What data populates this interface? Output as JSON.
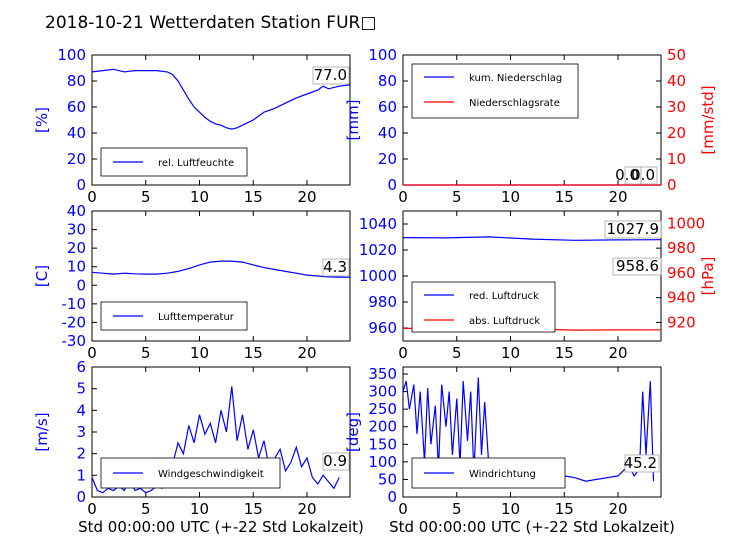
{
  "figure": {
    "title": "2018-10-21 Wetterdaten Station FUR□"
  },
  "chart_data": [
    {
      "id": "humidity",
      "type": "line",
      "xlim": [
        0,
        24
      ],
      "xticks": [
        0,
        5,
        10,
        15,
        20
      ],
      "ylim": [
        0,
        100
      ],
      "yticks": [
        0,
        20,
        40,
        60,
        80,
        100
      ],
      "ylabel": "[%]",
      "series": [
        {
          "name": "rel. Luftfeuchte",
          "color": "#0000ff",
          "x": [
            0,
            1,
            2,
            3,
            4,
            5,
            6,
            7,
            7.5,
            8,
            8.5,
            9,
            9.5,
            10,
            10.5,
            11,
            11.5,
            12,
            12.5,
            13,
            13.5,
            14,
            14.5,
            15,
            15.5,
            16,
            17,
            18,
            19,
            20,
            21,
            21.5,
            22,
            23,
            24
          ],
          "y": [
            87,
            88,
            89,
            87,
            88,
            88,
            88,
            87,
            85,
            80,
            73,
            66,
            60,
            56,
            52,
            49,
            47,
            46,
            44,
            43,
            44,
            46,
            48,
            50,
            53,
            56,
            59,
            63,
            67,
            70,
            73,
            76,
            74,
            76,
            77
          ]
        }
      ],
      "value_label": "77.0"
    },
    {
      "id": "precipitation",
      "type": "line",
      "xlim": [
        0,
        24
      ],
      "xticks": [
        0,
        5,
        10,
        15,
        20
      ],
      "ylim": [
        0,
        100
      ],
      "yticks": [
        0,
        20,
        40,
        60,
        80,
        100
      ],
      "ylabel": "[mm]",
      "y2lim": [
        0,
        50
      ],
      "y2ticks": [
        0,
        10,
        20,
        30,
        40,
        50
      ],
      "y2label": "[mm/std]",
      "series": [
        {
          "name": "kum. Niederschlag",
          "color": "#0000ff",
          "x": [
            0,
            24
          ],
          "y": [
            0,
            0
          ]
        },
        {
          "name": "Niederschlagsrate",
          "color": "#ff0000",
          "x": [
            0,
            24
          ],
          "y": [
            0,
            0
          ]
        }
      ],
      "value_labels": [
        "0.0",
        "0.0"
      ]
    },
    {
      "id": "temperature",
      "type": "line",
      "xlim": [
        0,
        24
      ],
      "xticks": [
        0,
        5,
        10,
        15,
        20
      ],
      "ylim": [
        -30,
        40
      ],
      "yticks": [
        -30,
        -20,
        -10,
        0,
        10,
        20,
        30,
        40
      ],
      "ylabel": "[C]",
      "series": [
        {
          "name": "Lufttemperatur",
          "color": "#0000ff",
          "x": [
            0,
            1,
            2,
            3,
            4,
            5,
            6,
            7,
            8,
            9,
            10,
            11,
            12,
            13,
            14,
            15,
            16,
            17,
            18,
            19,
            20,
            21,
            22,
            23,
            24
          ],
          "y": [
            7,
            6.5,
            6,
            6.5,
            6.2,
            6,
            6,
            6.5,
            7.5,
            9,
            11,
            12.5,
            13,
            13,
            12.5,
            11,
            9.5,
            8.5,
            7.5,
            6.5,
            5.5,
            5,
            4.5,
            4.4,
            4.3
          ]
        }
      ],
      "value_label": "4.3"
    },
    {
      "id": "pressure",
      "type": "line",
      "xlim": [
        0,
        24
      ],
      "xticks": [
        0,
        5,
        10,
        15,
        20
      ],
      "ylim": [
        950,
        1050
      ],
      "yticks": [
        960,
        980,
        1000,
        1020,
        1040
      ],
      "y2lim": [
        905,
        1010
      ],
      "y2ticks": [
        920,
        940,
        960,
        980,
        1000
      ],
      "y2label": "[hPa]",
      "series": [
        {
          "name": "red. Luftdruck",
          "color": "#0000ff",
          "x": [
            0,
            4,
            8,
            10,
            12,
            16,
            20,
            24
          ],
          "y": [
            1029.5,
            1029.3,
            1030.1,
            1029.2,
            1028.4,
            1027.5,
            1027.8,
            1027.9
          ]
        },
        {
          "name": "abs. Luftdruck",
          "color": "#ff0000",
          "x": [
            0,
            4,
            8,
            10,
            12,
            16,
            20,
            24
          ],
          "y": [
            959.7,
            959.8,
            960.6,
            959.9,
            959.3,
            958.4,
            958.5,
            958.6
          ]
        }
      ],
      "value_labels": [
        "1027.9",
        "958.6"
      ]
    },
    {
      "id": "windspeed",
      "type": "line",
      "xlim": [
        0,
        24
      ],
      "xticks": [
        0,
        5,
        10,
        15,
        20
      ],
      "ylim": [
        0,
        6
      ],
      "yticks": [
        0,
        1,
        2,
        3,
        4,
        5,
        6
      ],
      "ylabel": "[m/s]",
      "series": [
        {
          "name": "Windgeschwindigkeit",
          "color": "#0000ff",
          "x": [
            0,
            0.5,
            1,
            1.5,
            2,
            2.5,
            3,
            3.5,
            4,
            4.5,
            5,
            5.5,
            6,
            6.5,
            7,
            7.5,
            8,
            8.5,
            9,
            9.5,
            10,
            10.5,
            11,
            11.5,
            12,
            12.5,
            13,
            13.5,
            14,
            14.5,
            15,
            15.5,
            16,
            16.5,
            17,
            17.5,
            18,
            18.5,
            19,
            19.5,
            20,
            20.5,
            21,
            21.5,
            22,
            22.5,
            23
          ],
          "y": [
            0.9,
            0.3,
            0.2,
            0.4,
            0.3,
            0.5,
            0.3,
            0.8,
            0.3,
            0.4,
            0.2,
            0.3,
            0.5,
            0.4,
            0.8,
            1.5,
            2.5,
            2.0,
            3.3,
            2.5,
            3.8,
            2.9,
            3.4,
            2.5,
            4.0,
            3.0,
            5.1,
            2.6,
            3.8,
            2.2,
            3.1,
            1.8,
            2.6,
            1.3,
            1.8,
            2.2,
            1.2,
            1.6,
            2.3,
            1.4,
            1.8,
            0.9,
            0.6,
            1.0,
            0.7,
            0.4,
            0.9
          ]
        }
      ],
      "value_label": "0.9",
      "xlabel": "Std 00:00:00 UTC (+-22 Std Lokalzeit)"
    },
    {
      "id": "winddirection",
      "type": "line",
      "xlim": [
        0,
        24
      ],
      "xticks": [
        0,
        5,
        10,
        15,
        20
      ],
      "ylim": [
        0,
        370
      ],
      "yticks": [
        0,
        50,
        100,
        150,
        200,
        250,
        300,
        350
      ],
      "ylabel": "[deg]",
      "series": [
        {
          "name": "Windrichtung",
          "color": "#0000ff",
          "x": [
            0,
            0.3,
            0.6,
            1,
            1.3,
            1.6,
            2,
            2.3,
            2.6,
            3,
            3.3,
            3.6,
            4,
            4.3,
            4.6,
            5,
            5.3,
            5.6,
            6,
            6.3,
            6.6,
            7,
            7.3,
            7.6,
            8,
            8.2,
            8.5,
            9,
            10,
            11,
            12,
            13,
            14,
            15,
            16,
            17,
            18,
            19,
            20,
            21,
            21.5,
            22,
            22.3,
            22.6,
            23,
            23.3
          ],
          "y": [
            300,
            330,
            250,
            320,
            180,
            300,
            100,
            310,
            150,
            260,
            80,
            320,
            200,
            300,
            120,
            280,
            90,
            330,
            160,
            300,
            70,
            340,
            120,
            270,
            80,
            75,
            70,
            85,
            80,
            75,
            80,
            70,
            75,
            60,
            55,
            45,
            50,
            55,
            60,
            90,
            60,
            80,
            300,
            120,
            330,
            45
          ]
        }
      ],
      "value_label": "45.2",
      "xlabel": "Std 00:00:00 UTC (+-22 Std Lokalzeit)"
    }
  ]
}
